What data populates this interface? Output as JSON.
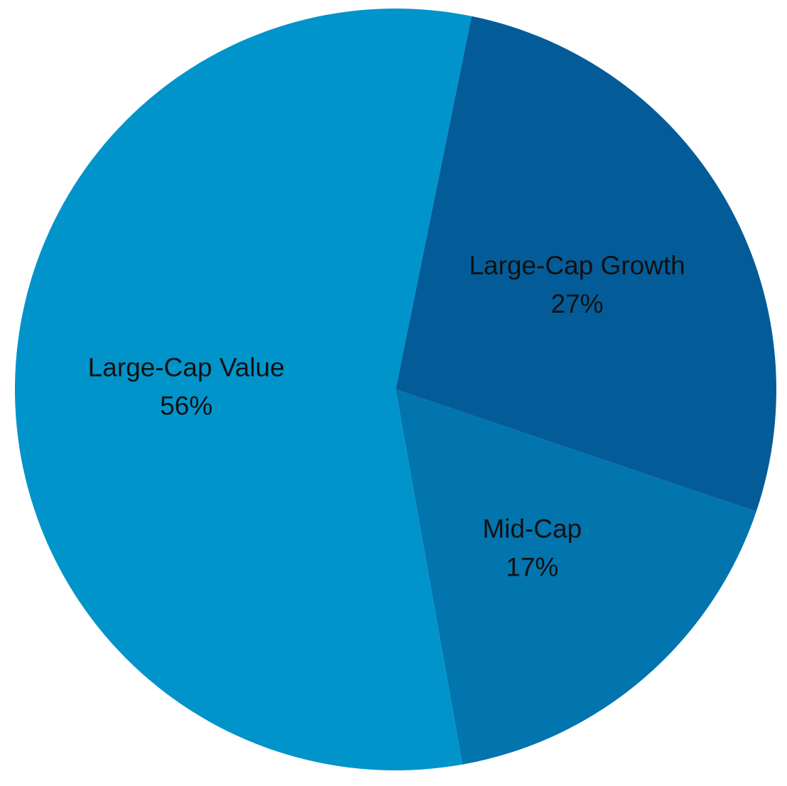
{
  "chart_data": {
    "type": "pie",
    "title": "",
    "start_angle_deg": 11.5,
    "direction": "clockwise",
    "slices": [
      {
        "label": "Large-Cap Growth",
        "value": 27,
        "value_label": "27%",
        "color": "#035c98"
      },
      {
        "label": "Mid-Cap",
        "value": 17,
        "value_label": "17%",
        "color": "#0274ae"
      },
      {
        "label": "Large-Cap Value",
        "value": 56,
        "value_label": "56%",
        "color": "#0094cb"
      }
    ]
  }
}
